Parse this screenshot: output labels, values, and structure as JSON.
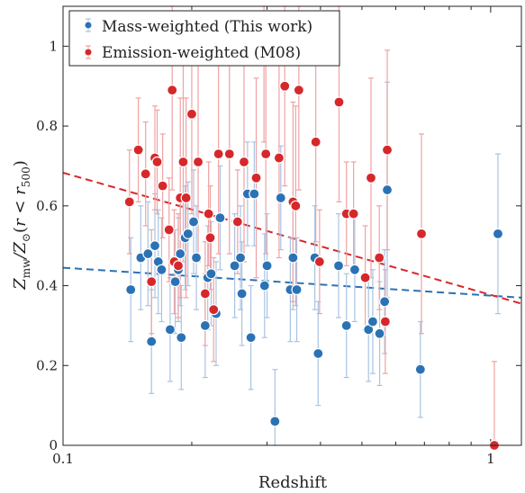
{
  "chart_data": {
    "type": "scatter",
    "title": "",
    "xlabel": "Redshift",
    "ylabel": "Z_mw / Z_⊙ (r < r_500)",
    "xscale": "log",
    "xlim": [
      0.1,
      1.18
    ],
    "ylim": [
      0,
      1.1
    ],
    "x_ticks": [
      {
        "value": 0.1,
        "label": "0.1"
      },
      {
        "value": 1,
        "label": "1"
      }
    ],
    "y_ticks": [
      {
        "value": 0,
        "label": "0"
      },
      {
        "value": 0.2,
        "label": "0.2"
      },
      {
        "value": 0.4,
        "label": "0.4"
      },
      {
        "value": 0.6,
        "label": "0.6"
      },
      {
        "value": 0.8,
        "label": "0.8"
      },
      {
        "value": 1,
        "label": "1"
      }
    ],
    "grid": false,
    "legend_position": "top-left",
    "series": [
      {
        "name": "Mass-weighted (This work)",
        "color": "#2b72b5",
        "error_color": "#a9c3e2",
        "points": [
          [
            0.144,
            0.39,
            0.13
          ],
          [
            0.152,
            0.47,
            0.13
          ],
          [
            0.158,
            0.48,
            0.13
          ],
          [
            0.161,
            0.26,
            0.13
          ],
          [
            0.164,
            0.5,
            0.13
          ],
          [
            0.167,
            0.46,
            0.13
          ],
          [
            0.17,
            0.44,
            0.13
          ],
          [
            0.178,
            0.29,
            0.13
          ],
          [
            0.183,
            0.41,
            0.13
          ],
          [
            0.186,
            0.44,
            0.13
          ],
          [
            0.188,
            0.48,
            0.13
          ],
          [
            0.189,
            0.27,
            0.13
          ],
          [
            0.193,
            0.52,
            0.13
          ],
          [
            0.196,
            0.53,
            0.13
          ],
          [
            0.202,
            0.56,
            0.13
          ],
          [
            0.205,
            0.47,
            0.13
          ],
          [
            0.215,
            0.3,
            0.13
          ],
          [
            0.218,
            0.42,
            0.13
          ],
          [
            0.222,
            0.43,
            0.13
          ],
          [
            0.228,
            0.33,
            0.13
          ],
          [
            0.233,
            0.57,
            0.13
          ],
          [
            0.252,
            0.45,
            0.13
          ],
          [
            0.26,
            0.47,
            0.13
          ],
          [
            0.262,
            0.38,
            0.13
          ],
          [
            0.27,
            0.63,
            0.13
          ],
          [
            0.275,
            0.27,
            0.13
          ],
          [
            0.28,
            0.63,
            0.13
          ],
          [
            0.296,
            0.4,
            0.13
          ],
          [
            0.3,
            0.45,
            0.13
          ],
          [
            0.313,
            0.06,
            0.13
          ],
          [
            0.323,
            0.62,
            0.13
          ],
          [
            0.34,
            0.39,
            0.13
          ],
          [
            0.345,
            0.47,
            0.13
          ],
          [
            0.352,
            0.39,
            0.13
          ],
          [
            0.388,
            0.47,
            0.13
          ],
          [
            0.395,
            0.23,
            0.13
          ],
          [
            0.441,
            0.45,
            0.13
          ],
          [
            0.46,
            0.3,
            0.13
          ],
          [
            0.481,
            0.44,
            0.13
          ],
          [
            0.518,
            0.29,
            0.13
          ],
          [
            0.53,
            0.31,
            0.13
          ],
          [
            0.55,
            0.28,
            0.13
          ],
          [
            0.565,
            0.36,
            0.13
          ],
          [
            0.573,
            0.64,
            0.27
          ],
          [
            0.685,
            0.19,
            0.12
          ],
          [
            1.04,
            0.53,
            0.2
          ]
        ]
      },
      {
        "name": "Emission-weighted (M08)",
        "color": "#d6282b",
        "error_color": "#f0a2a2",
        "points": [
          [
            0.143,
            0.61,
            0.13
          ],
          [
            0.15,
            0.74,
            0.13
          ],
          [
            0.156,
            0.68,
            0.13
          ],
          [
            0.161,
            0.41,
            0.13
          ],
          [
            0.164,
            0.72,
            0.13
          ],
          [
            0.166,
            0.71,
            0.13
          ],
          [
            0.171,
            0.65,
            0.13
          ],
          [
            0.177,
            0.54,
            0.13
          ],
          [
            0.18,
            0.89,
            0.25
          ],
          [
            0.182,
            0.46,
            0.13
          ],
          [
            0.186,
            0.45,
            0.13
          ],
          [
            0.188,
            0.62,
            0.25
          ],
          [
            0.191,
            0.71,
            0.25
          ],
          [
            0.194,
            0.62,
            0.25
          ],
          [
            0.2,
            0.83,
            0.25
          ],
          [
            0.207,
            0.71,
            0.25
          ],
          [
            0.215,
            0.38,
            0.13
          ],
          [
            0.219,
            0.58,
            0.13
          ],
          [
            0.221,
            0.52,
            0.13
          ],
          [
            0.225,
            0.34,
            0.13
          ],
          [
            0.231,
            0.73,
            0.25
          ],
          [
            0.245,
            0.73,
            0.25
          ],
          [
            0.256,
            0.56,
            0.13
          ],
          [
            0.265,
            0.71,
            0.25
          ],
          [
            0.283,
            0.67,
            0.25
          ],
          [
            0.295,
            1.01,
            0.25
          ],
          [
            0.298,
            0.73,
            0.25
          ],
          [
            0.32,
            0.72,
            0.25
          ],
          [
            0.33,
            0.9,
            0.25
          ],
          [
            0.345,
            0.61,
            0.25
          ],
          [
            0.35,
            0.6,
            0.25
          ],
          [
            0.356,
            0.89,
            0.25
          ],
          [
            0.39,
            0.76,
            0.25
          ],
          [
            0.398,
            0.46,
            0.13
          ],
          [
            0.442,
            0.86,
            0.25
          ],
          [
            0.46,
            0.58,
            0.13
          ],
          [
            0.478,
            0.58,
            0.13
          ],
          [
            0.509,
            0.42,
            0.13
          ],
          [
            0.525,
            0.67,
            0.25
          ],
          [
            0.549,
            0.47,
            0.13
          ],
          [
            0.567,
            0.31,
            0.13
          ],
          [
            0.573,
            0.74,
            0.25
          ],
          [
            0.689,
            0.53,
            0.25
          ],
          [
            1.02,
            0.0,
            0.21
          ]
        ]
      }
    ],
    "trend_lines": [
      {
        "series": "Mass-weighted (This work)",
        "color": "#2b72b5",
        "style": "dashed",
        "points": [
          [
            0.1,
            0.445
          ],
          [
            1.18,
            0.37
          ]
        ]
      },
      {
        "series": "Emission-weighted (M08)",
        "color": "#d6282b",
        "style": "dashed",
        "points": [
          [
            0.1,
            0.683
          ],
          [
            1.18,
            0.355
          ]
        ]
      }
    ]
  }
}
